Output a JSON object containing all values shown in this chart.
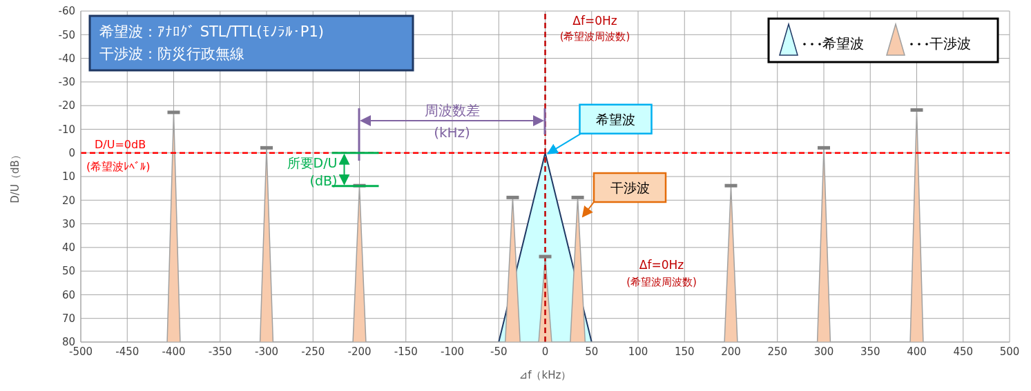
{
  "chart_data": {
    "type": "area",
    "xlabel": "⊿f（kHz）",
    "ylabel": "D/U（dB）",
    "xlim": [
      -500,
      500
    ],
    "xticks": [
      -500,
      -450,
      -400,
      -350,
      -300,
      -250,
      -200,
      -150,
      -100,
      -50,
      0,
      50,
      100,
      150,
      200,
      250,
      300,
      350,
      400,
      450,
      500
    ],
    "ylim": [
      80,
      -60
    ],
    "yticks": [
      -60,
      -50,
      -40,
      -30,
      -20,
      -10,
      0,
      10,
      20,
      30,
      40,
      50,
      60,
      70,
      80
    ],
    "grid": true,
    "legend": "top right",
    "series": [
      {
        "name": "希望波",
        "color": "#ccffff",
        "x": [
          -50,
          0,
          50
        ],
        "values": [
          80,
          0,
          80
        ]
      },
      {
        "name": "干渉波",
        "color": "#f8cbad",
        "x": [
          -407,
          -400,
          -393,
          -307,
          -300,
          -293,
          -207,
          -200,
          -193,
          -43,
          -35,
          -27,
          -7,
          0,
          7,
          27,
          35,
          43,
          193,
          200,
          207,
          293,
          300,
          307,
          393,
          400,
          407
        ],
        "values": [
          80,
          -17,
          80,
          80,
          -2,
          80,
          80,
          14,
          80,
          80,
          19,
          80,
          80,
          44,
          80,
          80,
          19,
          80,
          80,
          14,
          80,
          80,
          -2,
          80,
          80,
          -18,
          80
        ]
      }
    ],
    "ref_lines": [
      {
        "axis": "y",
        "value": 0,
        "label": "D/U=0dB (希望波ﾚﾍﾞﾙ)",
        "color": "#ff0000",
        "line_style": "dashed"
      },
      {
        "axis": "x",
        "value": 0,
        "label": "Δf=0Hz (希望波周波数)",
        "color": "#c00000",
        "line_style": "dashed"
      }
    ],
    "annotations": [
      "希望波：ｱﾅﾛｸﾞ STL/TTL(ﾓﾉﾗﾙ･P1)",
      "干渉波：防災行政無線",
      "Δf=0Hz (希望波周波数)",
      {
        "text": "希望波",
        "x": 0,
        "y": 0
      },
      "干渉波",
      "周波数差 (kHz)",
      {
        "text": "所要D/U (dB)",
        "x": -200,
        "y": 14
      }
    ]
  }
}
